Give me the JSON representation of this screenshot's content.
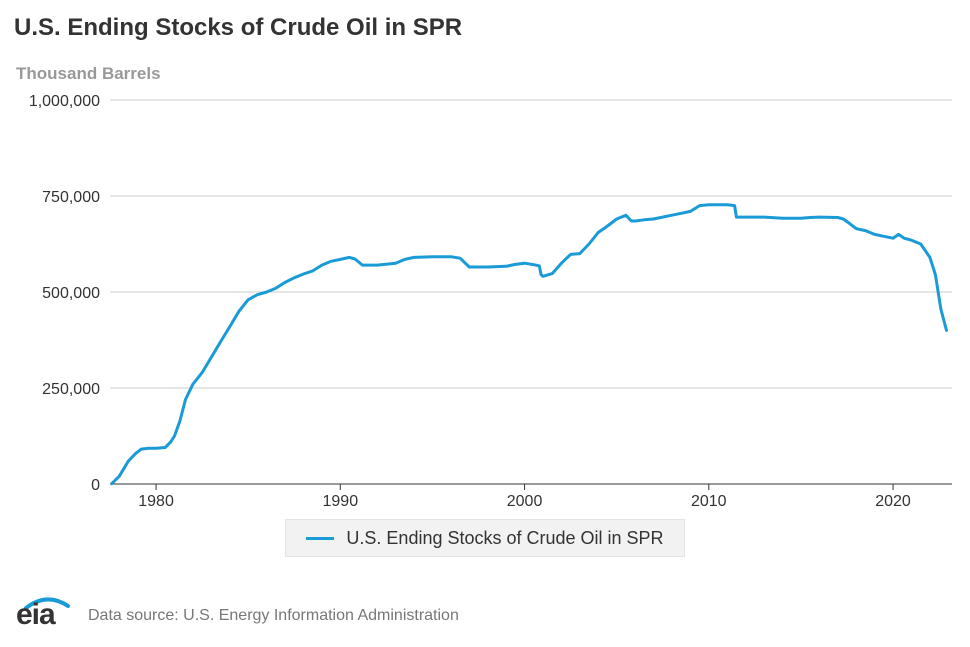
{
  "title": "U.S. Ending Stocks of Crude Oil in SPR",
  "unit_label": "Thousand Barrels",
  "footer": {
    "logo_text": "eia",
    "source": "Data source: U.S. Energy Information Administration"
  },
  "colors": {
    "series": "#1a9bd7",
    "grid": "#cccccc",
    "axis_text": "#333333"
  },
  "chart_data": {
    "type": "line",
    "title": "U.S. Ending Stocks of Crude Oil in SPR",
    "ylabel": "Thousand Barrels",
    "xlabel": "",
    "xlim": [
      1977.5,
      2023.2
    ],
    "ylim": [
      0,
      1000000
    ],
    "x_ticks": [
      1980,
      1990,
      2000,
      2010,
      2020
    ],
    "x_tick_labels": [
      "1980",
      "1990",
      "2000",
      "2010",
      "2020"
    ],
    "y_ticks": [
      0,
      250000,
      500000,
      750000,
      1000000
    ],
    "y_tick_labels": [
      "0",
      "250,000",
      "500,000",
      "750,000",
      "1,000,000"
    ],
    "grid": true,
    "legend_position": "bottom-center",
    "series": [
      {
        "name": "U.S. Ending Stocks of Crude Oil in SPR",
        "x": [
          1977.6,
          1978.0,
          1978.5,
          1978.9,
          1979.2,
          1979.6,
          1980.0,
          1980.5,
          1980.8,
          1981.0,
          1981.3,
          1981.6,
          1982.0,
          1982.5,
          1983.0,
          1983.5,
          1984.0,
          1984.5,
          1985.0,
          1985.5,
          1986.0,
          1986.5,
          1987.0,
          1987.5,
          1988.0,
          1988.5,
          1989.0,
          1989.5,
          1990.0,
          1990.5,
          1990.8,
          1991.2,
          1992.0,
          1993.0,
          1993.5,
          1994.0,
          1995.0,
          1996.0,
          1996.5,
          1997.0,
          1998.0,
          1999.0,
          1999.5,
          2000.0,
          2000.5,
          2000.8,
          2000.9,
          2001.0,
          2001.5,
          2002.0,
          2002.5,
          2003.0,
          2003.5,
          2004.0,
          2004.5,
          2005.0,
          2005.5,
          2005.8,
          2006.0,
          2006.5,
          2007.0,
          2007.5,
          2008.0,
          2008.5,
          2009.0,
          2009.5,
          2010.0,
          2010.5,
          2011.0,
          2011.4,
          2011.5,
          2012.0,
          2013.0,
          2014.0,
          2015.0,
          2015.5,
          2016.0,
          2017.0,
          2017.3,
          2017.6,
          2018.0,
          2018.5,
          2019.0,
          2019.5,
          2020.0,
          2020.3,
          2020.6,
          2021.0,
          2021.5,
          2022.0,
          2022.3,
          2022.6,
          2022.9
        ],
        "values": [
          1000,
          20000,
          60000,
          80000,
          91000,
          93000,
          93000,
          95000,
          110000,
          125000,
          165000,
          220000,
          260000,
          290000,
          330000,
          370000,
          410000,
          450000,
          480000,
          493000,
          500000,
          510000,
          525000,
          537000,
          547000,
          555000,
          570000,
          580000,
          585000,
          590000,
          586000,
          570000,
          570000,
          575000,
          585000,
          590000,
          592000,
          592000,
          588000,
          565000,
          565000,
          567000,
          572000,
          575000,
          571000,
          568000,
          545000,
          541000,
          548000,
          575000,
          598000,
          600000,
          625000,
          655000,
          672000,
          690000,
          700000,
          685000,
          685000,
          688000,
          690000,
          695000,
          700000,
          705000,
          710000,
          725000,
          727000,
          727000,
          727000,
          725000,
          695000,
          695000,
          695000,
          692000,
          692000,
          694000,
          695000,
          694000,
          690000,
          680000,
          665000,
          660000,
          650000,
          645000,
          640000,
          650000,
          640000,
          635000,
          625000,
          590000,
          545000,
          455000,
          400000
        ]
      }
    ]
  }
}
